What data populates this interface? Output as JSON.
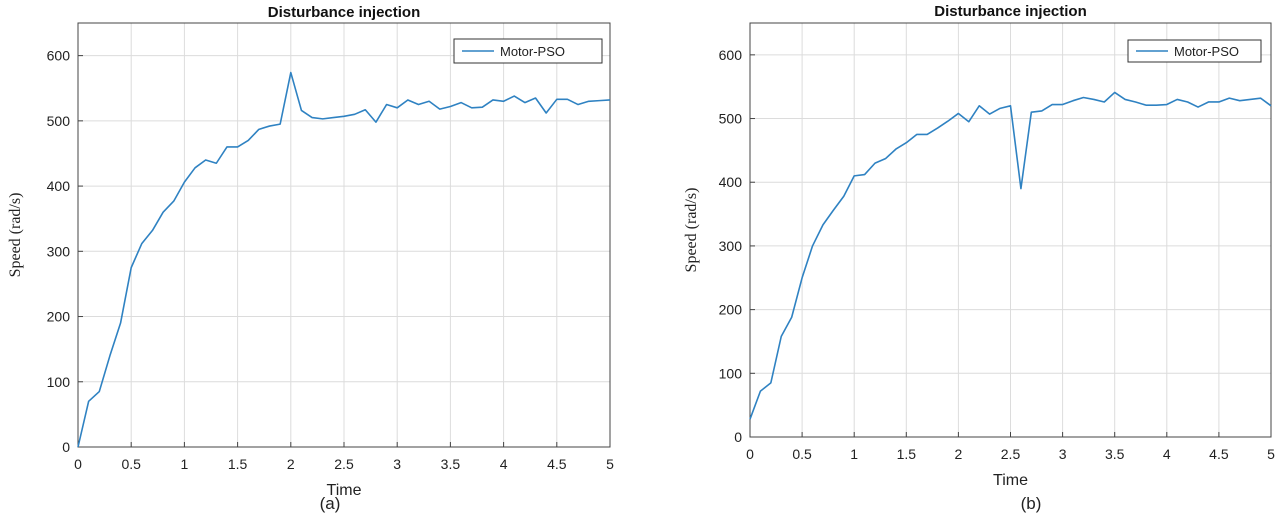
{
  "chart_data": [
    {
      "type": "line",
      "panel_label": "(a)",
      "title": "Disturbance injection",
      "xlabel": "Time",
      "ylabel": "Speed (rad/s)",
      "xlim": [
        0,
        5
      ],
      "ylim": [
        0,
        650
      ],
      "xticks": [
        0,
        0.5,
        1,
        1.5,
        2,
        2.5,
        3,
        3.5,
        4,
        4.5,
        5
      ],
      "yticks": [
        0,
        100,
        200,
        300,
        400,
        500,
        600
      ],
      "grid": true,
      "legend_position": "top-right",
      "color": "#2f82c2",
      "series": [
        {
          "name": "Motor-PSO",
          "x": [
            0,
            0.1,
            0.2,
            0.3,
            0.4,
            0.5,
            0.6,
            0.7,
            0.8,
            0.9,
            1.0,
            1.1,
            1.2,
            1.3,
            1.4,
            1.5,
            1.6,
            1.7,
            1.8,
            1.9,
            2.0,
            2.1,
            2.2,
            2.3,
            2.4,
            2.5,
            2.6,
            2.7,
            2.8,
            2.9,
            3.0,
            3.1,
            3.2,
            3.3,
            3.4,
            3.5,
            3.6,
            3.7,
            3.8,
            3.9,
            4.0,
            4.1,
            4.2,
            4.3,
            4.4,
            4.5,
            4.6,
            4.7,
            4.8,
            4.9,
            5.0
          ],
          "y": [
            0,
            70,
            85,
            140,
            190,
            275,
            312,
            332,
            360,
            377,
            406,
            428,
            440,
            435,
            460,
            460,
            470,
            487,
            492,
            495,
            574,
            516,
            505,
            503,
            505,
            507,
            510,
            517,
            498,
            525,
            520,
            532,
            525,
            530,
            518,
            522,
            528,
            520,
            521,
            532,
            530,
            538,
            528,
            535,
            512,
            533,
            533,
            525,
            530,
            531,
            532
          ]
        }
      ]
    },
    {
      "type": "line",
      "panel_label": "(b)",
      "title": "Disturbance injection",
      "xlabel": "Time",
      "ylabel": "Speed (rad/s)",
      "xlim": [
        0,
        5
      ],
      "ylim": [
        0,
        650
      ],
      "xticks": [
        0,
        0.5,
        1,
        1.5,
        2,
        2.5,
        3,
        3.5,
        4,
        4.5,
        5
      ],
      "yticks": [
        0,
        100,
        200,
        300,
        400,
        500,
        600
      ],
      "grid": true,
      "legend_position": "top-right",
      "color": "#2f82c2",
      "series": [
        {
          "name": "Motor-PSO",
          "x": [
            0,
            0.1,
            0.2,
            0.3,
            0.4,
            0.5,
            0.6,
            0.7,
            0.8,
            0.9,
            1.0,
            1.1,
            1.2,
            1.3,
            1.4,
            1.5,
            1.6,
            1.7,
            1.8,
            1.9,
            2.0,
            2.1,
            2.2,
            2.3,
            2.4,
            2.5,
            2.6,
            2.7,
            2.8,
            2.9,
            3.0,
            3.1,
            3.2,
            3.3,
            3.4,
            3.5,
            3.6,
            3.7,
            3.8,
            3.9,
            4.0,
            4.1,
            4.2,
            4.3,
            4.4,
            4.5,
            4.6,
            4.7,
            4.8,
            4.9,
            5.0
          ],
          "y": [
            28,
            72,
            85,
            158,
            188,
            250,
            300,
            333,
            356,
            378,
            410,
            412,
            430,
            437,
            452,
            462,
            475,
            475,
            485,
            496,
            508,
            495,
            520,
            507,
            516,
            520,
            390,
            510,
            512,
            522,
            522,
            528,
            533,
            530,
            526,
            541,
            530,
            526,
            521,
            521,
            522,
            530,
            526,
            518,
            526,
            526,
            532,
            528,
            530,
            532,
            520
          ]
        }
      ]
    }
  ]
}
